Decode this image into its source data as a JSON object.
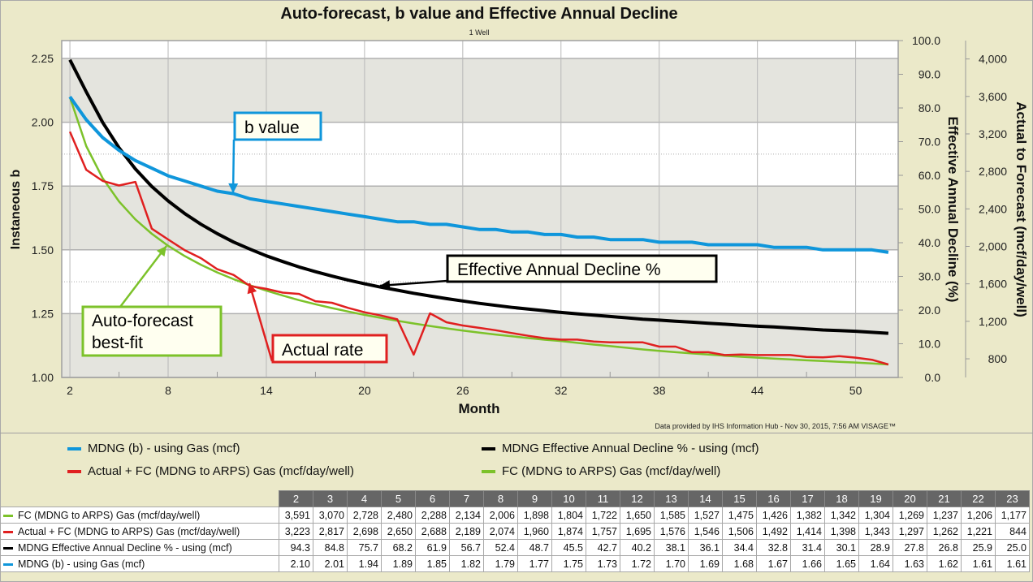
{
  "chart_data": {
    "type": "line",
    "title": "Auto-forecast, b value and Effective Annual Decline",
    "subtitle": "1 Well",
    "xlabel": "Month",
    "ylabel_left": "Instaneous b",
    "ylabel_mid": "Effective Annual Decline (%)",
    "ylabel_right": "Actual to Forecast (mcf/day/well)",
    "footer": "Data provided by IHS Information Hub - Nov 30, 2015, 7:56 AM  VISAGE™",
    "xlim": [
      1.5,
      52.6
    ],
    "x_ticks": [
      2,
      8,
      14,
      20,
      26,
      32,
      38,
      44,
      50
    ],
    "ylim_left": [
      1.0,
      2.32
    ],
    "y_ticks_left": [
      "1.00",
      "1.25",
      "1.50",
      "1.75",
      "2.00",
      "2.25"
    ],
    "ylim_mid": [
      0,
      100
    ],
    "y_ticks_mid": [
      "0.0",
      "10.0",
      "20.0",
      "30.0",
      "40.0",
      "50.0",
      "60.0",
      "70.0",
      "80.0",
      "90.0",
      "100.0"
    ],
    "ylim_right": [
      601,
      4196
    ],
    "y_ticks_right": [
      "800",
      "1,200",
      "1,600",
      "2,000",
      "2,400",
      "2,800",
      "3,200",
      "3,600",
      "4,000"
    ],
    "grid": true,
    "legend_position": "bottom",
    "x": [
      2,
      3,
      4,
      5,
      6,
      7,
      8,
      9,
      10,
      11,
      12,
      13,
      14,
      15,
      16,
      17,
      18,
      19,
      20,
      21,
      22,
      23,
      24,
      25,
      26,
      27,
      28,
      29,
      30,
      31,
      32,
      33,
      34,
      35,
      36,
      37,
      38,
      39,
      40,
      41,
      42,
      43,
      44,
      45,
      46,
      47,
      48,
      49,
      50,
      51,
      52
    ],
    "series": [
      {
        "name": "MDNG (b) - using Gas (mcf)",
        "axis": "left",
        "color": "#0f96db",
        "values": [
          2.1,
          2.01,
          1.94,
          1.89,
          1.85,
          1.82,
          1.79,
          1.77,
          1.75,
          1.73,
          1.72,
          1.7,
          1.69,
          1.68,
          1.67,
          1.66,
          1.65,
          1.64,
          1.63,
          1.62,
          1.61,
          1.61,
          1.6,
          1.6,
          1.59,
          1.58,
          1.58,
          1.57,
          1.57,
          1.56,
          1.56,
          1.55,
          1.55,
          1.54,
          1.54,
          1.54,
          1.53,
          1.53,
          1.53,
          1.52,
          1.52,
          1.52,
          1.52,
          1.51,
          1.51,
          1.51,
          1.5,
          1.5,
          1.5,
          1.5,
          1.49
        ]
      },
      {
        "name": "MDNG Effective Annual Decline % - using (mcf)",
        "axis": "mid",
        "color": "#000000",
        "values": [
          94.3,
          84.8,
          75.7,
          68.2,
          61.9,
          56.7,
          52.4,
          48.7,
          45.5,
          42.7,
          40.2,
          38.1,
          36.1,
          34.4,
          32.8,
          31.4,
          30.1,
          28.9,
          27.8,
          26.8,
          25.9,
          25.0,
          24.2,
          23.4,
          22.7,
          22.0,
          21.4,
          20.8,
          20.3,
          19.8,
          19.3,
          18.9,
          18.5,
          18.1,
          17.7,
          17.3,
          17.0,
          16.7,
          16.4,
          16.1,
          15.8,
          15.5,
          15.2,
          15.0,
          14.7,
          14.4,
          14.1,
          13.9,
          13.7,
          13.4,
          13.1
        ]
      },
      {
        "name": "Actual + FC (MDNG to ARPS) Gas (mcf/day/well)",
        "axis": "right",
        "color": "#e02020",
        "values": [
          3223,
          2817,
          2698,
          2650,
          2688,
          2189,
          2074,
          1960,
          1874,
          1757,
          1695,
          1576,
          1546,
          1506,
          1492,
          1414,
          1398,
          1343,
          1297,
          1262,
          1221,
          844,
          1285,
          1190,
          1155,
          1130,
          1105,
          1075,
          1045,
          1020,
          1005,
          1005,
          985,
          975,
          975,
          975,
          930,
          930,
          870,
          870,
          840,
          845,
          840,
          840,
          840,
          820,
          815,
          828,
          812,
          790,
          740
        ]
      },
      {
        "name": "FC (MDNG to ARPS) Gas (mcf/day/well)",
        "axis": "right",
        "color": "#7cc22a",
        "values": [
          3591,
          3070,
          2728,
          2480,
          2288,
          2134,
          2006,
          1898,
          1804,
          1722,
          1650,
          1585,
          1527,
          1475,
          1426,
          1382,
          1342,
          1304,
          1269,
          1237,
          1206,
          1177,
          1150,
          1125,
          1102,
          1080,
          1059,
          1040,
          1021,
          1004,
          990,
          970,
          952,
          935,
          918,
          900,
          885,
          870,
          857,
          845,
          833,
          822,
          812,
          802,
          793,
          784,
          776,
          768,
          760,
          750,
          740
        ]
      }
    ],
    "annotations": [
      {
        "text": "b value",
        "color": "#0f96db"
      },
      {
        "text": "Effective Annual Decline %",
        "color": "#000000"
      },
      {
        "text": "Auto-forecast",
        "text2": "best-fit",
        "color": "#7cc22a"
      },
      {
        "text": "Actual rate",
        "color": "#e02020"
      }
    ]
  },
  "legend": [
    {
      "label": "MDNG (b) - using Gas (mcf)",
      "color": "#0f96db"
    },
    {
      "label": "MDNG Effective Annual Decline % - using (mcf)",
      "color": "#000000"
    },
    {
      "label": "Actual + FC (MDNG to ARPS) Gas (mcf/day/well)",
      "color": "#e02020"
    },
    {
      "label": "FC (MDNG to ARPS) Gas (mcf/day/well)",
      "color": "#7cc22a"
    }
  ],
  "table": {
    "columns": [
      "2",
      "3",
      "4",
      "5",
      "6",
      "7",
      "8",
      "9",
      "10",
      "11",
      "12",
      "13",
      "14",
      "15",
      "16",
      "17",
      "18",
      "19",
      "20",
      "21",
      "22",
      "23"
    ],
    "rows": [
      {
        "label": "FC (MDNG to ARPS) Gas (mcf/day/well)",
        "color": "#7cc22a",
        "cells": [
          "3,591",
          "3,070",
          "2,728",
          "2,480",
          "2,288",
          "2,134",
          "2,006",
          "1,898",
          "1,804",
          "1,722",
          "1,650",
          "1,585",
          "1,527",
          "1,475",
          "1,426",
          "1,382",
          "1,342",
          "1,304",
          "1,269",
          "1,237",
          "1,206",
          "1,177"
        ]
      },
      {
        "label": "Actual + FC (MDNG to ARPS) Gas (mcf/day/well)",
        "color": "#e02020",
        "cells": [
          "3,223",
          "2,817",
          "2,698",
          "2,650",
          "2,688",
          "2,189",
          "2,074",
          "1,960",
          "1,874",
          "1,757",
          "1,695",
          "1,576",
          "1,546",
          "1,506",
          "1,492",
          "1,414",
          "1,398",
          "1,343",
          "1,297",
          "1,262",
          "1,221",
          "844"
        ]
      },
      {
        "label": "MDNG Effective Annual Decline % - using (mcf)",
        "color": "#000000",
        "cells": [
          "94.3",
          "84.8",
          "75.7",
          "68.2",
          "61.9",
          "56.7",
          "52.4",
          "48.7",
          "45.5",
          "42.7",
          "40.2",
          "38.1",
          "36.1",
          "34.4",
          "32.8",
          "31.4",
          "30.1",
          "28.9",
          "27.8",
          "26.8",
          "25.9",
          "25.0"
        ]
      },
      {
        "label": "MDNG (b) - using Gas (mcf)",
        "color": "#0f96db",
        "cells": [
          "2.10",
          "2.01",
          "1.94",
          "1.89",
          "1.85",
          "1.82",
          "1.79",
          "1.77",
          "1.75",
          "1.73",
          "1.72",
          "1.70",
          "1.69",
          "1.68",
          "1.67",
          "1.66",
          "1.65",
          "1.64",
          "1.63",
          "1.62",
          "1.61",
          "1.61"
        ]
      }
    ]
  }
}
